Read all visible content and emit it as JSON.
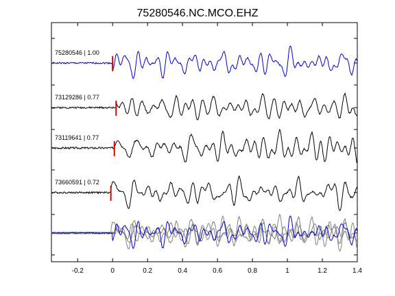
{
  "chart_data": {
    "type": "line",
    "title": "75280546.NC.MCO.EHZ",
    "xlabel": "",
    "ylabel": "",
    "xlim": [
      -0.35,
      1.4
    ],
    "xticks": [
      -0.2,
      0,
      0.2,
      0.4,
      0.6,
      0.8,
      1,
      1.2,
      1.4
    ],
    "xtick_labels": [
      "-0.2",
      "0",
      "0.2",
      "0.4",
      "0.6",
      "0.8",
      "1",
      "1.2",
      "1.4"
    ],
    "grid": false,
    "pick_time": 0,
    "colors": {
      "master": "#0000cc",
      "other": "#000000",
      "overlay_other": "#808080",
      "pick": "#dd0000"
    },
    "series": [
      {
        "name": "75280546 | 1.00",
        "label": "75280546 | 1.00",
        "color": "#0000cc",
        "shift": 0.0,
        "scale": 1.0,
        "seed": 1
      },
      {
        "name": "73129286 | 0.77",
        "label": "73129286 | 0.77",
        "color": "#000000",
        "shift": 0.02,
        "scale": 1.1,
        "seed": 2
      },
      {
        "name": "73119641 | 0.77",
        "label": "73119641 | 0.77",
        "color": "#000000",
        "shift": 0.01,
        "scale": 1.25,
        "seed": 3
      },
      {
        "name": "73660591 | 0.72",
        "label": "73660591 | 0.72",
        "color": "#000000",
        "shift": -0.01,
        "scale": 1.15,
        "seed": 4
      }
    ]
  }
}
